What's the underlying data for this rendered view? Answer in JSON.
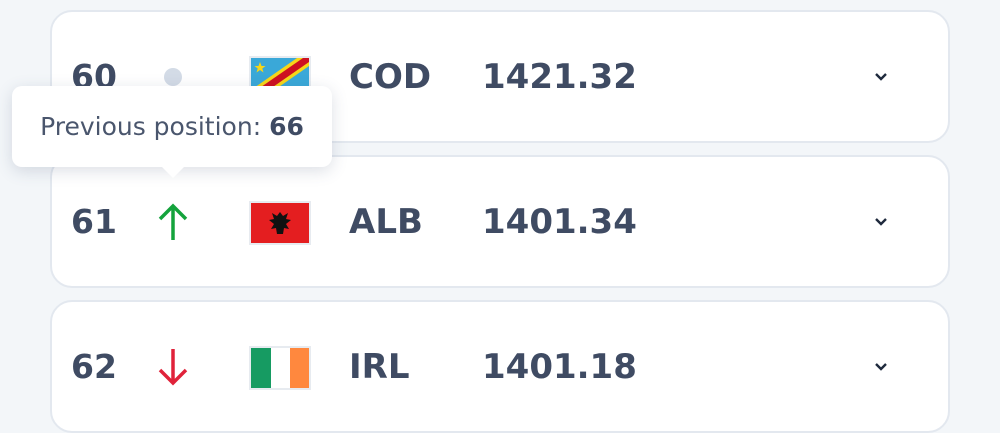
{
  "rows": [
    {
      "rank": "60",
      "movement": "unchanged",
      "code": "COD",
      "rating": "1421.32",
      "flag": "drc-flag"
    },
    {
      "rank": "61",
      "movement": "up",
      "code": "ALB",
      "rating": "1401.34",
      "flag": "albania-flag"
    },
    {
      "rank": "62",
      "movement": "down",
      "code": "IRL",
      "rating": "1401.18",
      "flag": "ireland-flag"
    }
  ],
  "tooltip": {
    "label": "Previous position:",
    "value": "66"
  },
  "colors": {
    "up": "#14a33c",
    "down": "#e0223a",
    "text": "#3f4b63"
  }
}
